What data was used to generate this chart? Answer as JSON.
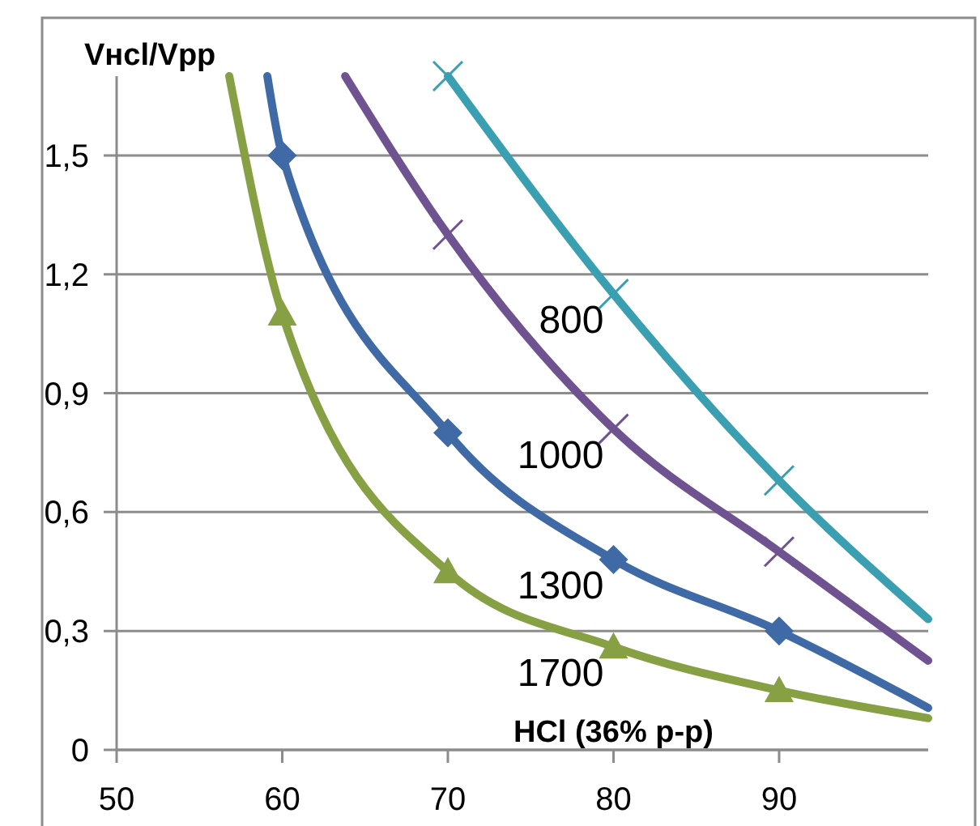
{
  "chart_data": {
    "type": "line",
    "ylabel": "Vнcl/Vpp",
    "xlabel": "HCl (36% p-p)",
    "xlim": [
      50,
      99
    ],
    "xticks": [
      50,
      60,
      70,
      80,
      90
    ],
    "ylim": [
      0,
      1.7
    ],
    "yticks": [
      {
        "value": 0,
        "label": "0"
      },
      {
        "value": 0.3,
        "label": "0,3"
      },
      {
        "value": 0.6,
        "label": "0,6"
      },
      {
        "value": 0.9,
        "label": "0,9"
      },
      {
        "value": 1.2,
        "label": "1,2"
      },
      {
        "value": 1.5,
        "label": "1,5"
      }
    ],
    "grid": "y",
    "line_style": "solid",
    "series": [
      {
        "name": "800",
        "color": "#3a9fb0",
        "x": [
          70,
          80,
          90,
          99
        ],
        "values": [
          1.7,
          1.15,
          0.68,
          0.33
        ],
        "marker": "none"
      },
      {
        "name": "1000",
        "color": "#6f5391",
        "x": [
          63.8,
          70,
          80,
          90,
          99
        ],
        "values": [
          1.7,
          1.3,
          0.81,
          0.5,
          0.225
        ],
        "marker": "none"
      },
      {
        "name": "1300",
        "color": "#3f6aa6",
        "x": [
          59.1,
          60,
          70,
          80,
          90,
          99
        ],
        "values": [
          1.7,
          1.5,
          0.8,
          0.48,
          0.3,
          0.106
        ],
        "marker": "none"
      },
      {
        "name": "1700",
        "color": "#86a043",
        "x": [
          56.8,
          60,
          70,
          80,
          90,
          99
        ],
        "values": [
          1.7,
          1.1,
          0.45,
          0.26,
          0.15,
          0.08
        ],
        "marker": "none"
      },
      {
        "type": "scatter",
        "color": "#3a9fb0",
        "x": [
          70,
          80,
          90
        ],
        "values": [
          1.7,
          1.15,
          0.68
        ],
        "marker": "cross"
      },
      {
        "type": "scatter",
        "color": "#6f5391",
        "x": [
          70,
          80,
          90
        ],
        "values": [
          1.3,
          0.81,
          0.5
        ],
        "marker": "cross"
      },
      {
        "type": "scatter",
        "color": "#3f6aa6",
        "x": [
          60,
          70,
          80,
          90
        ],
        "values": [
          1.5,
          0.8,
          0.48,
          0.3
        ],
        "marker": "diamond"
      },
      {
        "type": "scatter",
        "color": "#86a043",
        "x": [
          60,
          70,
          80,
          90
        ],
        "values": [
          1.1,
          0.45,
          0.26,
          0.15
        ],
        "marker": "triangle"
      }
    ]
  }
}
